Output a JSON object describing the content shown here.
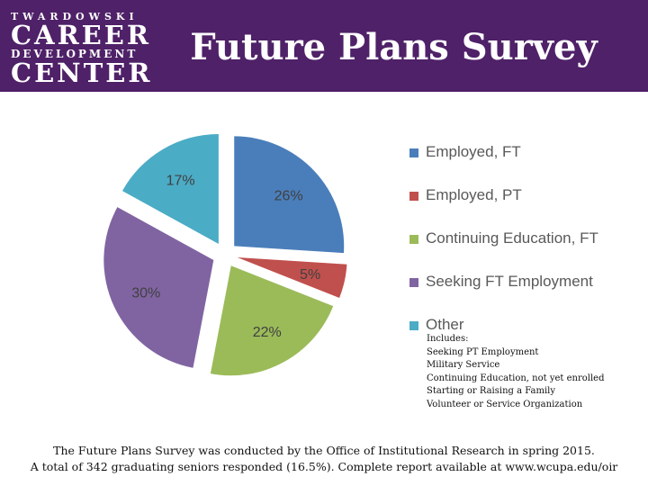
{
  "logo": {
    "line1": "TWARDOWSKI",
    "line2": "CAREER",
    "line3": "DEVELOPMENT",
    "line4": "CENTER"
  },
  "page_title": "Future Plans Survey",
  "colors": {
    "header_bg": "#4f2168",
    "employed_ft": "#4a7ebb",
    "employed_pt": "#c0504d",
    "continuing_ed": "#9bbb59",
    "seeking_ft": "#8064a2",
    "other": "#4bacc6"
  },
  "chart_data": {
    "type": "pie",
    "title": "",
    "slices": [
      {
        "label": "Employed, FT",
        "value": 26,
        "data_label": "26%",
        "color": "#4a7ebb"
      },
      {
        "label": "Employed, PT",
        "value": 5,
        "data_label": "5%",
        "color": "#c0504d"
      },
      {
        "label": "Continuing Education, FT",
        "value": 22,
        "data_label": "22%",
        "color": "#9bbb59"
      },
      {
        "label": "Seeking FT Employment",
        "value": 30,
        "data_label": "30%",
        "color": "#8064a2"
      },
      {
        "label": "Other",
        "value": 17,
        "data_label": "17%",
        "color": "#4bacc6"
      }
    ],
    "start_angle": "12 o'clock",
    "direction": "clockwise",
    "exploded": true,
    "legend_position": "right"
  },
  "other_note": {
    "heading": "Includes:",
    "items": [
      "Seeking PT Employment",
      "Military Service",
      "Continuing Education, not yet enrolled",
      "Starting or Raising a Family",
      "Volunteer or Service Organization"
    ]
  },
  "footer": {
    "line1": "The Future Plans Survey was conducted by the Office of Institutional Research in spring 2015.",
    "line2": "A total of 342 graduating seniors responded (16.5%). Complete report available at www.wcupa.edu/oir"
  }
}
